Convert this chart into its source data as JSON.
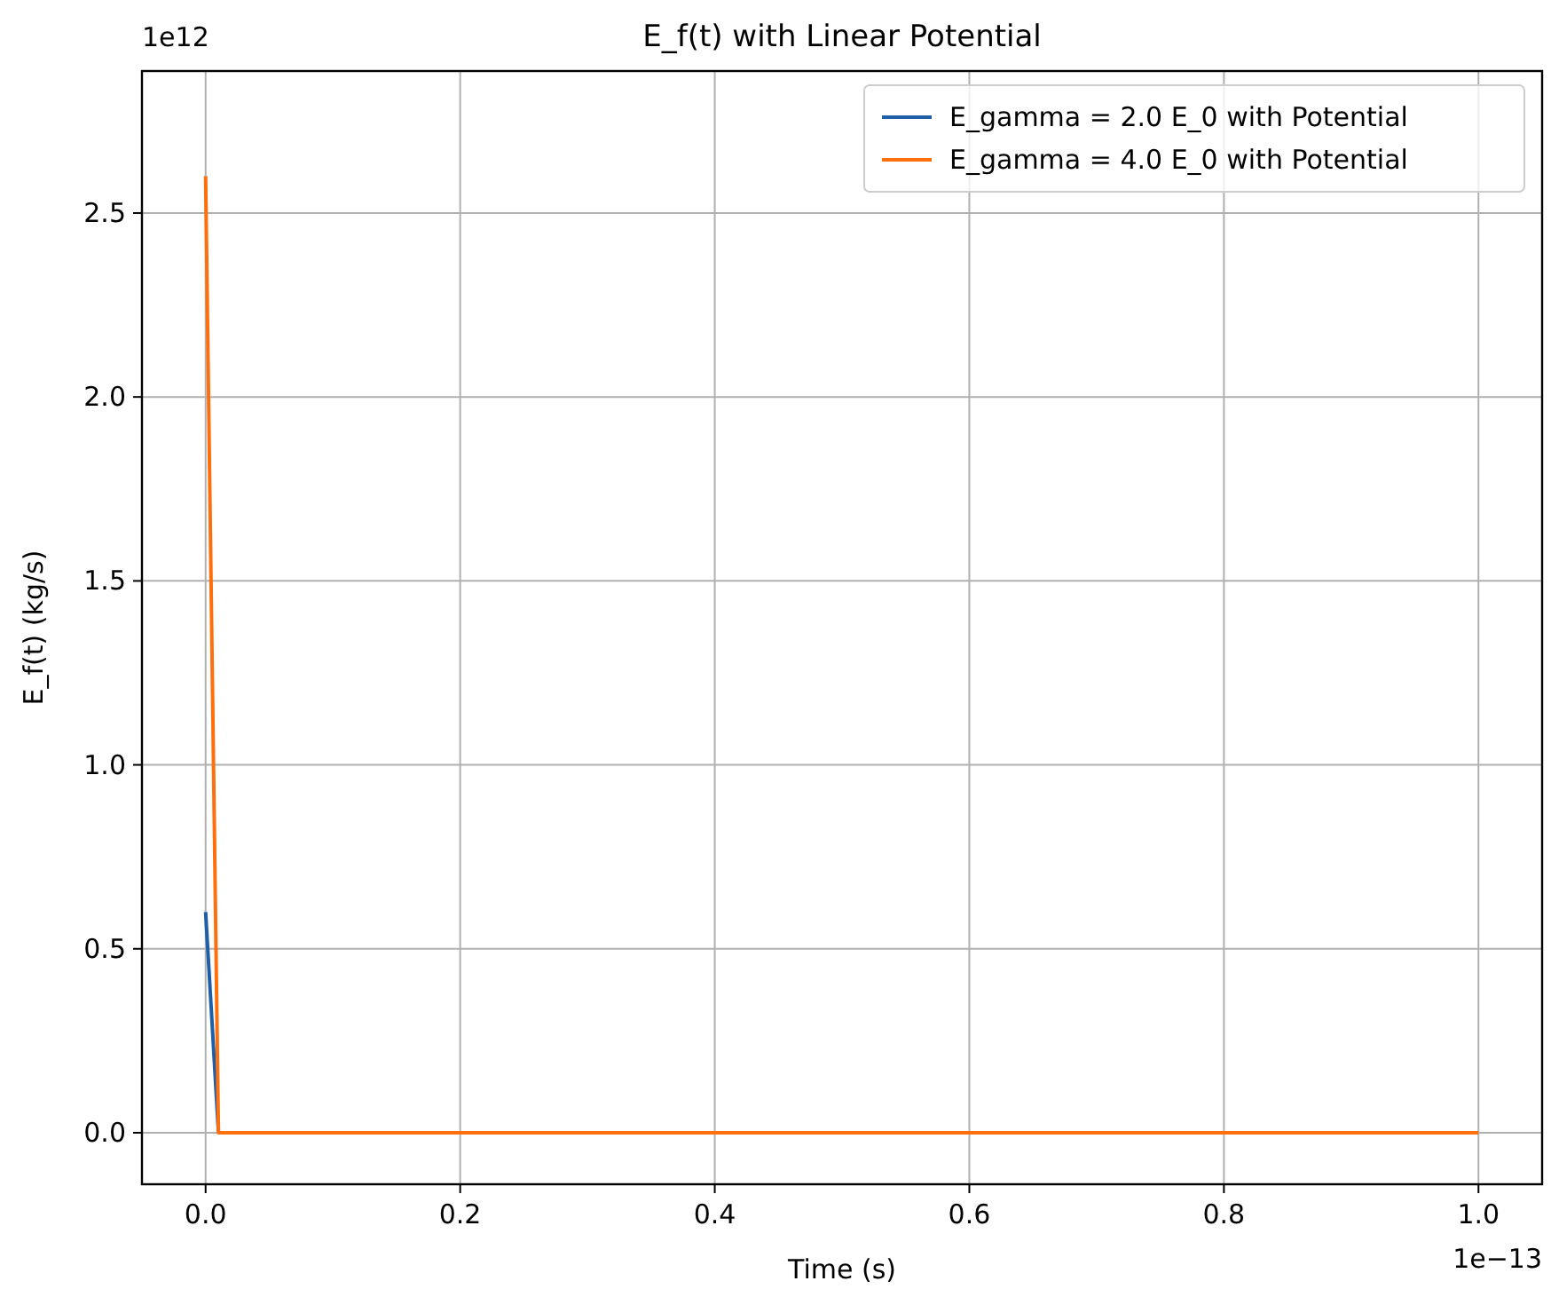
{
  "chart_data": {
    "type": "line",
    "title": "E_f(t) with Linear Potential",
    "xlabel": "Time (s)",
    "ylabel": "E_f(t) (kg/s)",
    "annotations": [
      "1e12",
      "1e−13"
    ],
    "x": [
      0,
      0.0101,
      1
    ],
    "series": [
      {
        "name": "E_gamma = 2.0 E_0 with Potential",
        "color": "#1f5fa8",
        "values": [
          0.6,
          0,
          null
        ]
      },
      {
        "name": "E_gamma = 4.0 E_0 with Potential",
        "color": "#ff6f0e",
        "values": [
          2.6,
          0,
          0
        ]
      }
    ],
    "xlim": [
      -0.05,
      1.05
    ],
    "xticks": [
      {
        "value": 0,
        "label": "0.0"
      },
      0.2,
      0.4,
      0.6,
      0.8,
      {
        "value": 1,
        "label": "1.0"
      }
    ],
    "ylim": [
      -0.14,
      2.886
    ],
    "yticks": [
      {
        "value": 0,
        "label": "0.0"
      },
      0.5,
      {
        "value": 1,
        "label": "1.0"
      },
      1.5,
      {
        "value": 2,
        "label": "2.0"
      },
      2.5
    ],
    "grid": true,
    "legend": "top right",
    "line_style": "solid",
    "marker": "none"
  }
}
